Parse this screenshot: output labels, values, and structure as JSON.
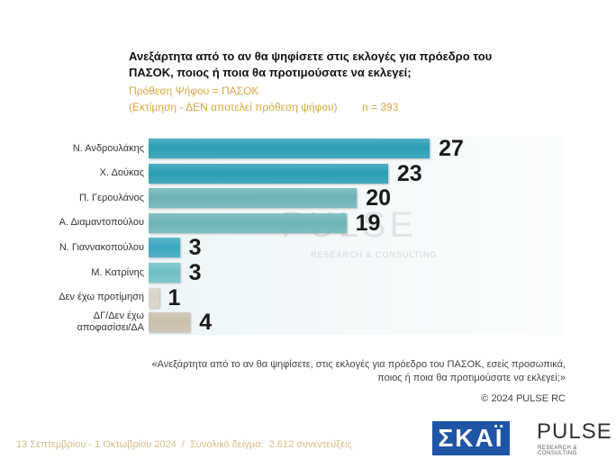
{
  "chart_data": {
    "type": "bar",
    "orientation": "horizontal",
    "title": "Ανεξάρτητα από το αν θα ψηφίσετε στις εκλογές για πρόεδρο του ΠΑΣΟΚ, ποιος ή ποια θα προτιμούσατε να εκλεγεί;",
    "subtitle": [
      "Πρόθεση Ψήφου = ΠΑΣΟΚ",
      "(Εκτίμηση - ΔΕΝ αποτελεί πρόθεση ψήφου)"
    ],
    "sample": "n = 393",
    "categories": [
      "Ν. Ανδρουλάκης",
      "Χ. Δούκας",
      "Π. Γερουλάνος",
      "Α. Διαμαντοπούλου",
      "Ν. Γιαννακοπούλου",
      "Μ. Κατρίνης",
      "Δεν έχω προτίμηση",
      "ΔΓ/Δεν έχω αποφασίσει/ΔΑ"
    ],
    "values": [
      27,
      23,
      20,
      19,
      3,
      3,
      1,
      4
    ],
    "colors": [
      "#2a9db3",
      "#2a9db3",
      "#6db4b6",
      "#6db4b6",
      "#3aa7bf",
      "#6fc0c6",
      "#d9d2c6",
      "#cbbfab"
    ],
    "watermark": [
      "PULSE",
      "RESEARCH & CONSULTING"
    ],
    "note": "«Ανεξάρτητα από το αν θα ψηφίσετε, στις εκλογές για πρόεδρο του ΠΑΣΟΚ, εσείς προσωπικά, ποιος ή ποια θα προτιμούσατε να εκλεγεί;»",
    "copyright": "© 2024 PULSE RC",
    "footer": "13 Σεπτεμβρίου - 1 Οκτωβρίου 2024  /  Συνολικό δείγμα:  2.612 συνεντεύξεις",
    "logos": [
      "ΣΚΑΪ",
      "PULSE",
      "RESEARCH & CONSULTING"
    ]
  }
}
